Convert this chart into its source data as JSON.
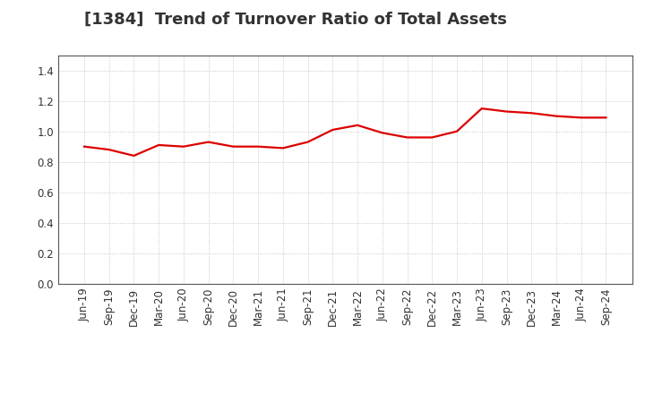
{
  "title": "[1384]  Trend of Turnover Ratio of Total Assets",
  "x_labels": [
    "Jun-19",
    "Sep-19",
    "Dec-19",
    "Mar-20",
    "Jun-20",
    "Sep-20",
    "Dec-20",
    "Mar-21",
    "Jun-21",
    "Sep-21",
    "Dec-21",
    "Mar-22",
    "Jun-22",
    "Sep-22",
    "Dec-22",
    "Mar-23",
    "Jun-23",
    "Sep-23",
    "Dec-23",
    "Mar-24",
    "Jun-24",
    "Sep-24"
  ],
  "values": [
    0.9,
    0.88,
    0.84,
    0.91,
    0.9,
    0.93,
    0.9,
    0.9,
    0.89,
    0.93,
    1.01,
    1.04,
    0.99,
    0.96,
    0.96,
    1.0,
    1.15,
    1.13,
    1.12,
    1.1,
    1.09,
    1.09
  ],
  "line_color": "#dd0000",
  "line_width": 1.6,
  "ylim": [
    0.0,
    1.5
  ],
  "yticks": [
    0.0,
    0.2,
    0.4,
    0.6,
    0.8,
    1.0,
    1.2,
    1.4
  ],
  "grid_color": "#aaaaaa",
  "bg_color": "#ffffff",
  "plot_bg_color": "#ffffff",
  "title_fontsize": 13,
  "tick_fontsize": 8.5,
  "title_color": "#333333"
}
